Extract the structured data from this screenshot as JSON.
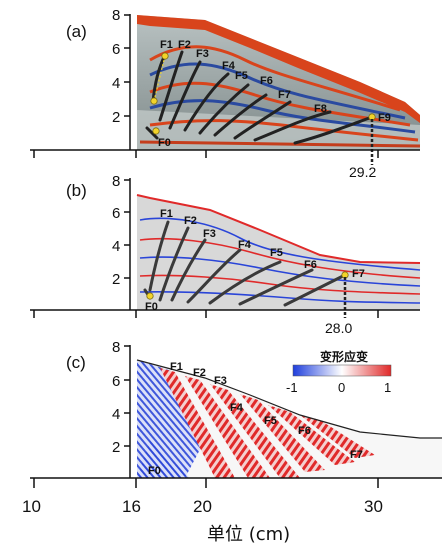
{
  "panels": [
    {
      "label": "(a)",
      "y_ticks": [
        "8",
        "6",
        "4",
        "2"
      ],
      "faults": [
        "F0",
        "F1",
        "F2",
        "F3",
        "F4",
        "F5",
        "F6",
        "F7",
        "F8",
        "F9"
      ],
      "marker_value": "29.2"
    },
    {
      "label": "(b)",
      "y_ticks": [
        "8",
        "6",
        "4",
        "2"
      ],
      "faults": [
        "F0",
        "F1",
        "F2",
        "F3",
        "F4",
        "F5",
        "F6",
        "F7"
      ],
      "marker_value": "28.0"
    },
    {
      "label": "(c)",
      "y_ticks": [
        "8",
        "6",
        "4",
        "2"
      ],
      "faults": [
        "F0",
        "F1",
        "F2",
        "F3",
        "F4",
        "F5",
        "F6",
        "F7"
      ],
      "colorbar": {
        "title": "变形应变",
        "ticks": [
          "-1",
          "0",
          "1"
        ]
      }
    }
  ],
  "x_axis": {
    "ticks": [
      "10",
      "16",
      "20",
      "30"
    ],
    "label": "单位 (cm)"
  },
  "colors": {
    "compressive": "#1f3fdc",
    "extensive": "#e02a2a",
    "sand_red": "#d8441c",
    "fault_line": "#222222",
    "marker": "#f2d32a"
  }
}
